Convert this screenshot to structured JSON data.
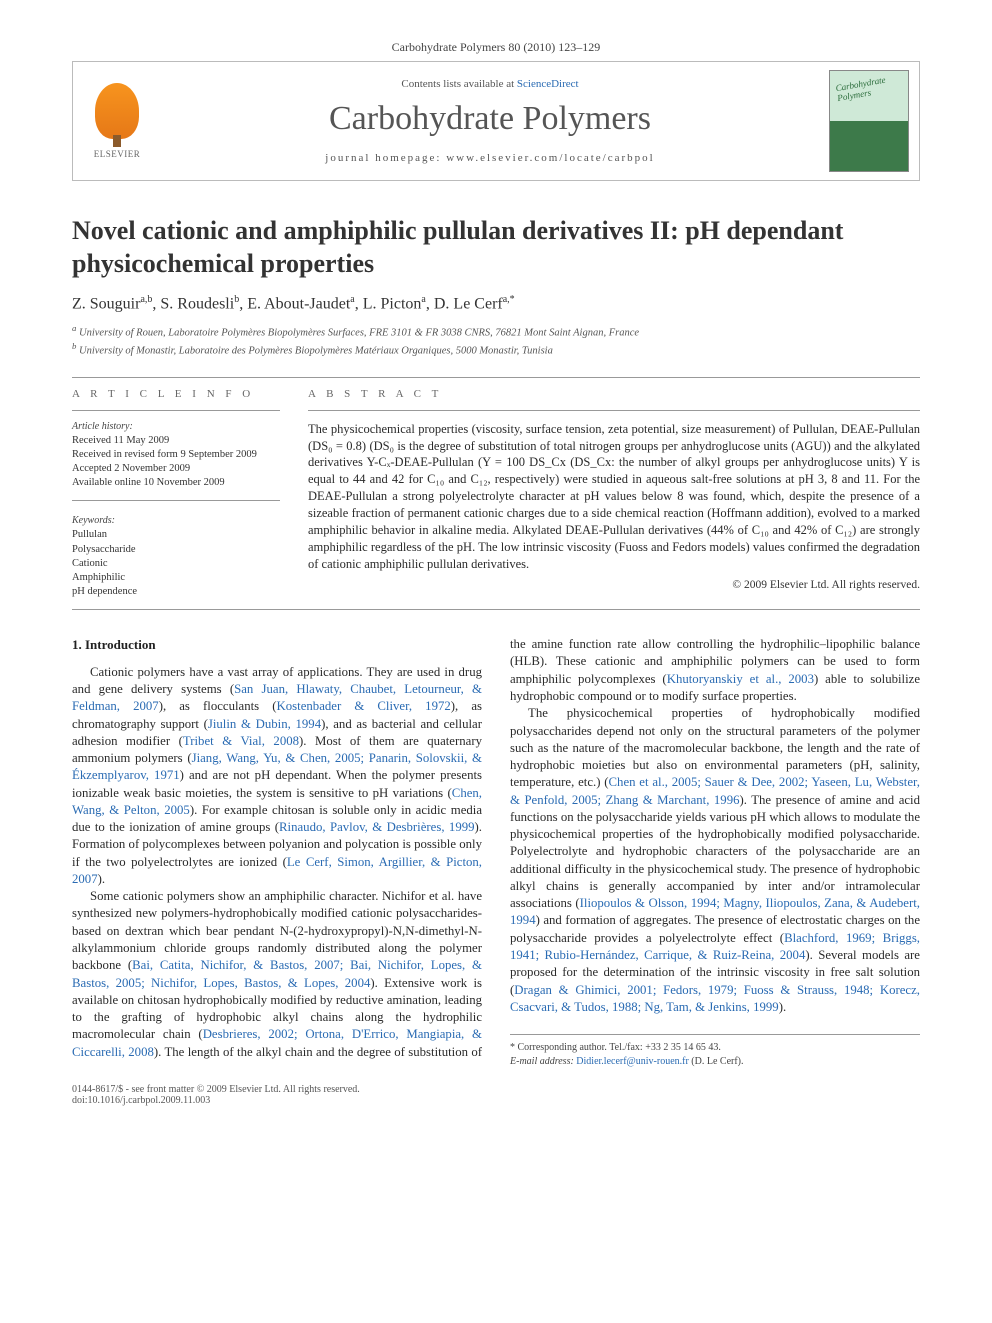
{
  "colors": {
    "link": "#2a6bb3",
    "text": "#2a2a2a",
    "rule": "#999999",
    "muted": "#555555"
  },
  "typography": {
    "body_fontsize_pt": 9.5,
    "title_fontsize_pt": 20,
    "journal_title_fontsize_pt": 26,
    "font_family": "Georgia, Times New Roman, serif"
  },
  "header": {
    "journal_ref": "Carbohydrate Polymers 80 (2010) 123–129",
    "contents_prefix": "Contents lists available at ",
    "contents_link": "ScienceDirect",
    "journal_title": "Carbohydrate Polymers",
    "homepage_prefix": "journal homepage: ",
    "homepage": "www.elsevier.com/locate/carbpol",
    "publisher_brand": "ELSEVIER",
    "cover_caption": "Carbohydrate Polymers"
  },
  "article": {
    "title": "Novel cationic and amphiphilic pullulan derivatives II: pH dependant physicochemical properties",
    "authors_html": "Z. Souguir",
    "authors": [
      {
        "name": "Z. Souguir",
        "affil": "a,b"
      },
      {
        "name": "S. Roudesli",
        "affil": "b"
      },
      {
        "name": "E. About-Jaudet",
        "affil": "a"
      },
      {
        "name": "L. Picton",
        "affil": "a"
      },
      {
        "name": "D. Le Cerf",
        "affil": "a,*"
      }
    ],
    "affiliations": {
      "a": "University of Rouen, Laboratoire Polymères Biopolymères Surfaces, FRE 3101 & FR 3038 CNRS, 76821 Mont Saint Aignan, France",
      "b": "University of Monastir, Laboratoire des Polymères Biopolymères Matériaux Organiques, 5000 Monastir, Tunisia"
    }
  },
  "info": {
    "section_label_info": "A R T I C L E   I N F O",
    "section_label_abs": "A B S T R A C T",
    "history_head": "Article history:",
    "history": [
      "Received 11 May 2009",
      "Received in revised form 9 September 2009",
      "Accepted 2 November 2009",
      "Available online 10 November 2009"
    ],
    "keywords_head": "Keywords:",
    "keywords": [
      "Pullulan",
      "Polysaccharide",
      "Cationic",
      "Amphiphilic",
      "pH dependence"
    ]
  },
  "abstract": {
    "text": "The physicochemical properties (viscosity, surface tension, zeta potential, size measurement) of Pullulan, DEAE-Pullulan (DS₀ = 0.8) (DS₀ is the degree of substitution of total nitrogen groups per anhydroglucose units (AGU)) and the alkylated derivatives Y-Cₓ-DEAE-Pullulan (Y = 100 DS_Cx (DS_Cx: the number of alkyl groups per anhydroglucose units) Y is equal to 44 and 42 for C₁₀ and C₁₂, respectively) were studied in aqueous salt-free solutions at pH 3, 8 and 11. For the DEAE-Pullulan a strong polyelectrolyte character at pH values below 8 was found, which, despite the presence of a sizeable fraction of permanent cationic charges due to a side chemical reaction (Hoffmann addition), evolved to a marked amphiphilic behavior in alkaline media. Alkylated DEAE-Pullulan derivatives (44% of C₁₀ and 42% of C₁₂) are strongly amphiphilic regardless of the pH. The low intrinsic viscosity (Fuoss and Fedors models) values confirmed the degradation of cationic amphiphilic pullulan derivatives.",
    "copyright": "© 2009 Elsevier Ltd. All rights reserved."
  },
  "body": {
    "heading": "1. Introduction",
    "p1_a": "Cationic polymers have a vast array of applications. They are used in drug and gene delivery systems (",
    "p1_c1": "San Juan, Hlawaty, Chaubet, Letourneur, & Feldman, 2007",
    "p1_b": "), as flocculants (",
    "p1_c2": "Kostenbader & Cliver, 1972",
    "p1_c": "), as chromatography support (",
    "p1_c3": "Jiulin & Dubin, 1994",
    "p1_d": "), and as bacterial and cellular adhesion modifier (",
    "p1_c4": "Tribet & Vial, 2008",
    "p1_e": "). Most of them are quaternary ammonium polymers (",
    "p1_c5": "Jiang, Wang, Yu, & Chen, 2005; Panarin, Solovskii, & Ékzemplyarov, 1971",
    "p1_f": ") and are not pH dependant. When the polymer presents ionizable weak basic moieties, the system is sensitive to pH variations (",
    "p1_c6": "Chen, Wang, & Pelton, 2005",
    "p1_g": "). For example chitosan is soluble only in acidic media due to the ionization of amine groups (",
    "p1_c7": "Rinaudo, Pavlov, & Desbrières, 1999",
    "p1_h": "). Formation of polycomplexes between polyanion and polycation is possible only if the two polyelectrolytes are ionized (",
    "p1_c8": "Le Cerf, Simon, Argillier, & Picton, 2007",
    "p1_i": ").",
    "p2_a": "Some cationic polymers show an amphiphilic character. Nichifor et al. have synthesized new polymers-hydrophobically modified cationic polysaccharides-based on dextran which bear pendant N-(2-hydroxypropyl)-N,N-dimethyl-N-alkylammonium chloride groups randomly distributed along the polymer backbone (",
    "p2_c1": "Bai, Catita, Nichifor, & Bastos, 2007; Bai, Nichifor, Lopes, & Bastos, 2005; Nichifor, Lopes, Bastos, & Lopes, 2004",
    "p2_b": "). Extensive work is available on chitosan hydrophobically modified by reductive amination, leading to the grafting of hydrophobic alkyl chains along ",
    "p2_cont": "the hydrophilic macromolecular chain (",
    "p2_c2": "Desbrieres, 2002; Ortona, D'Errico, Mangiapia, & Ciccarelli, 2008",
    "p2_c": "). The length of the alkyl chain and the degree of substitution of the amine function rate allow controlling the hydrophilic–lipophilic balance (HLB). These cationic and amphiphilic polymers can be used to form amphiphilic polycomplexes (",
    "p2_c3": "Khutoryanskiy et al., 2003",
    "p2_d": ") able to solubilize hydrophobic compound or to modify surface properties.",
    "p3_a": "The physicochemical properties of hydrophobically modified polysaccharides depend not only on the structural parameters of the polymer such as the nature of the macromolecular backbone, the length and the rate of hydrophobic moieties but also on environmental parameters (pH, salinity, temperature, etc.) (",
    "p3_c1": "Chen et al., 2005; Sauer & Dee, 2002; Yaseen, Lu, Webster, & Penfold, 2005; Zhang & Marchant, 1996",
    "p3_b": "). The presence of amine and acid functions on the polysaccharide yields various pH which allows to modulate the physicochemical properties of the hydrophobically modified polysaccharide. Polyelectrolyte and hydrophobic characters of the polysaccharide are an additional difficulty in the physicochemical study. The presence of hydrophobic alkyl chains is generally accompanied by inter and/or intramolecular associations (",
    "p3_c2": "Iliopoulos & Olsson, 1994; Magny, Iliopoulos, Zana, & Audebert, 1994",
    "p3_c": ") and formation of aggregates. The presence of electrostatic charges on the polysaccharide provides a polyelectrolyte effect (",
    "p3_c3": "Blachford, 1969; Briggs, 1941; Rubio-Hernández, Carrique, & Ruiz-Reina, 2004",
    "p3_d": "). Several models are proposed for the determination of the intrinsic viscosity in free salt solution (",
    "p3_c4": "Dragan & Ghimici, 2001; Fedors, 1979; Fuoss & Strauss, 1948; Korecz, Csacvari, & Tudos, 1988; Ng, Tam, & Jenkins, 1999",
    "p3_e": ")."
  },
  "footnotes": {
    "corr_label": "* Corresponding author. Tel./fax: +33 2 35 14 65 43.",
    "email_label": "E-mail address:",
    "email": "Didier.lecerf@univ-rouen.fr",
    "email_person": "(D. Le Cerf)."
  },
  "footer": {
    "left1": "0144-8617/$ - see front matter © 2009 Elsevier Ltd. All rights reserved.",
    "left2": "doi:10.1016/j.carbpol.2009.11.003"
  }
}
